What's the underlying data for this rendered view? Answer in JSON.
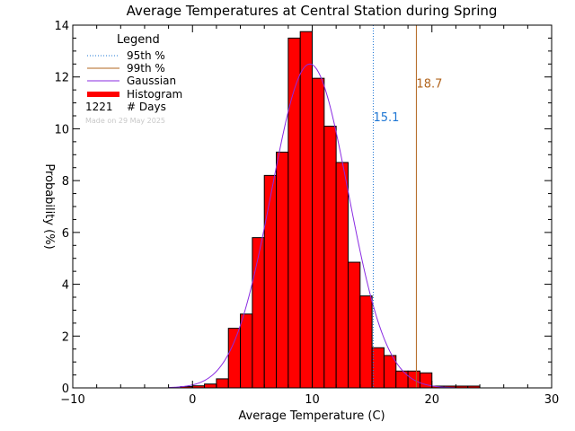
{
  "chart_data": {
    "type": "bar",
    "title": "Average Temperatures at Central Station during Spring",
    "xlabel": "Average Temperature (C)",
    "ylabel": "Probability (%)",
    "xlim": [
      -10,
      30
    ],
    "ylim": [
      0,
      14
    ],
    "x_ticks": [
      "−10",
      "0",
      "10",
      "20",
      "30"
    ],
    "y_ticks": [
      "0",
      "2",
      "4",
      "6",
      "8",
      "10",
      "12",
      "14"
    ],
    "bin_width": 1,
    "bins": [
      {
        "x0": -1,
        "value": 0.05
      },
      {
        "x0": 0,
        "value": 0.08
      },
      {
        "x0": 1,
        "value": 0.15
      },
      {
        "x0": 2,
        "value": 0.35
      },
      {
        "x0": 3,
        "value": 2.3
      },
      {
        "x0": 4,
        "value": 2.85
      },
      {
        "x0": 5,
        "value": 5.8
      },
      {
        "x0": 6,
        "value": 8.2
      },
      {
        "x0": 7,
        "value": 9.1
      },
      {
        "x0": 8,
        "value": 13.5
      },
      {
        "x0": 9,
        "value": 13.75
      },
      {
        "x0": 10,
        "value": 11.95
      },
      {
        "x0": 11,
        "value": 10.1
      },
      {
        "x0": 12,
        "value": 8.7
      },
      {
        "x0": 13,
        "value": 4.85
      },
      {
        "x0": 14,
        "value": 3.55
      },
      {
        "x0": 15,
        "value": 1.55
      },
      {
        "x0": 16,
        "value": 1.25
      },
      {
        "x0": 17,
        "value": 0.65
      },
      {
        "x0": 18,
        "value": 0.65
      },
      {
        "x0": 19,
        "value": 0.58
      },
      {
        "x0": 20,
        "value": 0.07
      },
      {
        "x0": 21,
        "value": 0.07
      },
      {
        "x0": 22,
        "value": 0.07
      },
      {
        "x0": 23,
        "value": 0.07
      }
    ],
    "gaussian": {
      "mean": 9.8,
      "sigma": 3.2,
      "peak": 12.5
    },
    "percentile_95": {
      "value": 15.1,
      "label": "15.1",
      "color": "#1f77d4",
      "label_y": 10.3
    },
    "percentile_99": {
      "value": 18.7,
      "label": "18.7",
      "color": "#b2651e",
      "label_y": 11.6
    },
    "histogram_color": "#ff0000",
    "gaussian_color": "#8a2be2",
    "legend": {
      "title": "Legend",
      "entries": [
        {
          "label": "95th %",
          "style": "dotted",
          "color": "#1f77d4"
        },
        {
          "label": "99th %",
          "style": "solid",
          "color": "#b2651e"
        },
        {
          "label": "Gaussian",
          "style": "solid",
          "color": "#8a2be2"
        },
        {
          "label": "Histogram",
          "style": "thick",
          "color": "#ff0000"
        }
      ],
      "count_value": "1221",
      "count_label": "# Days",
      "placement": "top-left"
    },
    "made_on": "Made on 29 May 2025"
  }
}
